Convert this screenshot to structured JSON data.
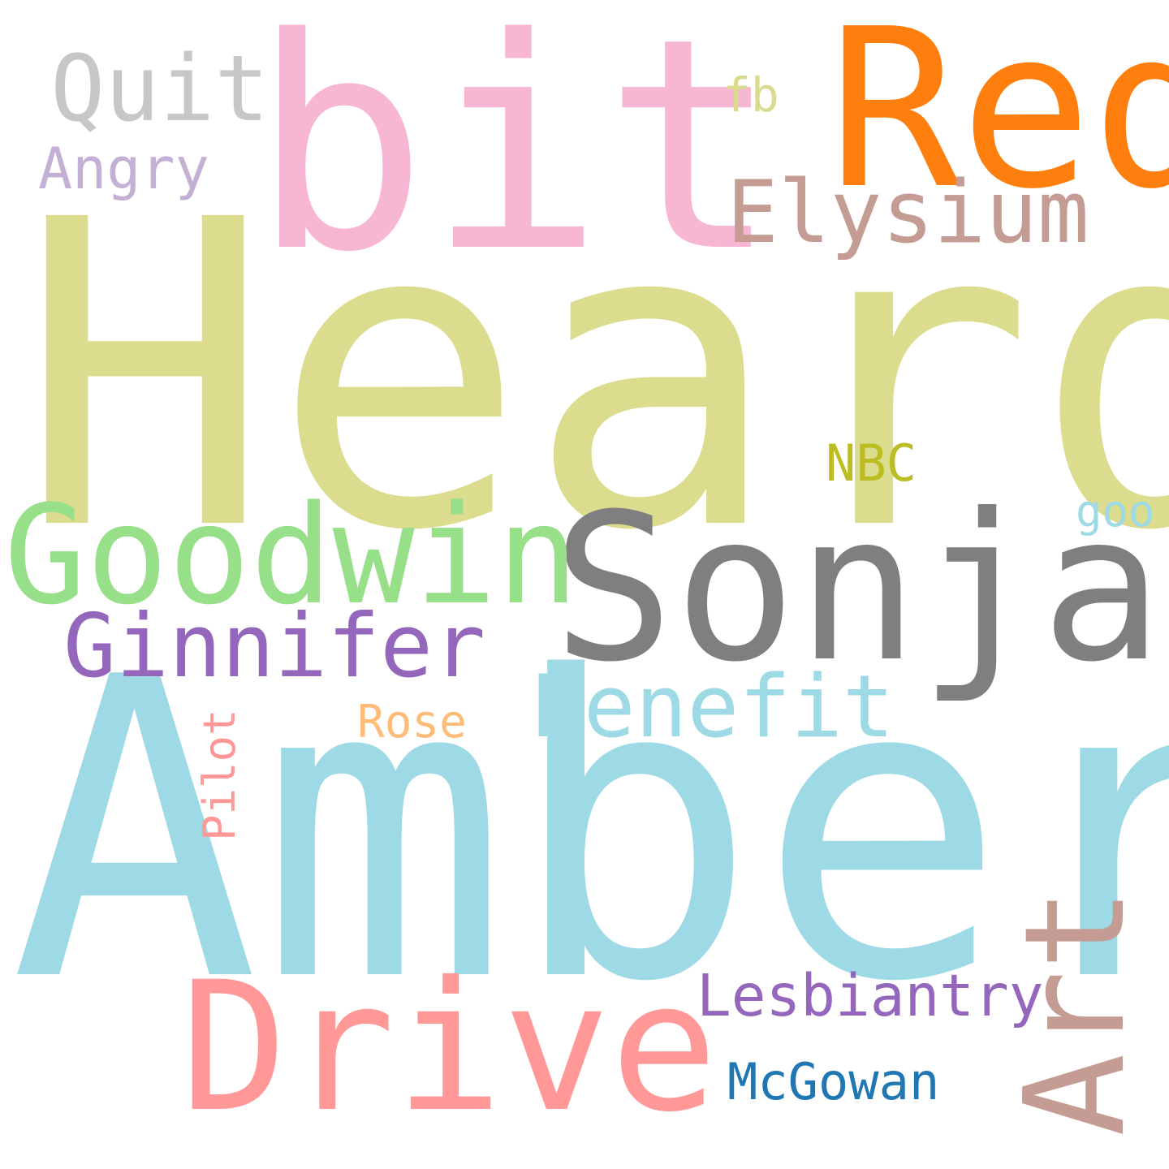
{
  "words": [
    {
      "text": "Heard",
      "color": "#dbdc8d",
      "orientation": "horizontal"
    },
    {
      "text": "Amber",
      "color": "#9edae5",
      "orientation": "horizontal"
    },
    {
      "text": "bit",
      "color": "#f7b6d2",
      "orientation": "horizontal"
    },
    {
      "text": "Red",
      "color": "#ff7f0e",
      "orientation": "horizontal"
    },
    {
      "text": "Sonja",
      "color": "#7f7f7f",
      "orientation": "horizontal"
    },
    {
      "text": "Goodwin",
      "color": "#98df8a",
      "orientation": "horizontal"
    },
    {
      "text": "Drive",
      "color": "#ff9896",
      "orientation": "horizontal"
    },
    {
      "text": "Art",
      "color": "#c49c94",
      "orientation": "vertical"
    },
    {
      "text": "Elysium",
      "color": "#c49c94",
      "orientation": "horizontal"
    },
    {
      "text": "Ginnifer",
      "color": "#9467bd",
      "orientation": "horizontal"
    },
    {
      "text": "Benefit",
      "color": "#9edae5",
      "orientation": "horizontal"
    },
    {
      "text": "Quit",
      "color": "#c7c7c7",
      "orientation": "horizontal"
    },
    {
      "text": "Lesbiantry",
      "color": "#9467bd",
      "orientation": "horizontal"
    },
    {
      "text": "Angry",
      "color": "#c5b0d5",
      "orientation": "horizontal"
    },
    {
      "text": "McGowan",
      "color": "#1f77b4",
      "orientation": "horizontal"
    },
    {
      "text": "Rose",
      "color": "#ffbb78",
      "orientation": "horizontal"
    },
    {
      "text": "Pilot",
      "color": "#ff9896",
      "orientation": "vertical"
    },
    {
      "text": "NBC",
      "color": "#bcbd22",
      "orientation": "horizontal"
    },
    {
      "text": "fb",
      "color": "#dbdb8d",
      "orientation": "horizontal"
    },
    {
      "text": "goo",
      "color": "#9edae5",
      "orientation": "horizontal"
    }
  ]
}
